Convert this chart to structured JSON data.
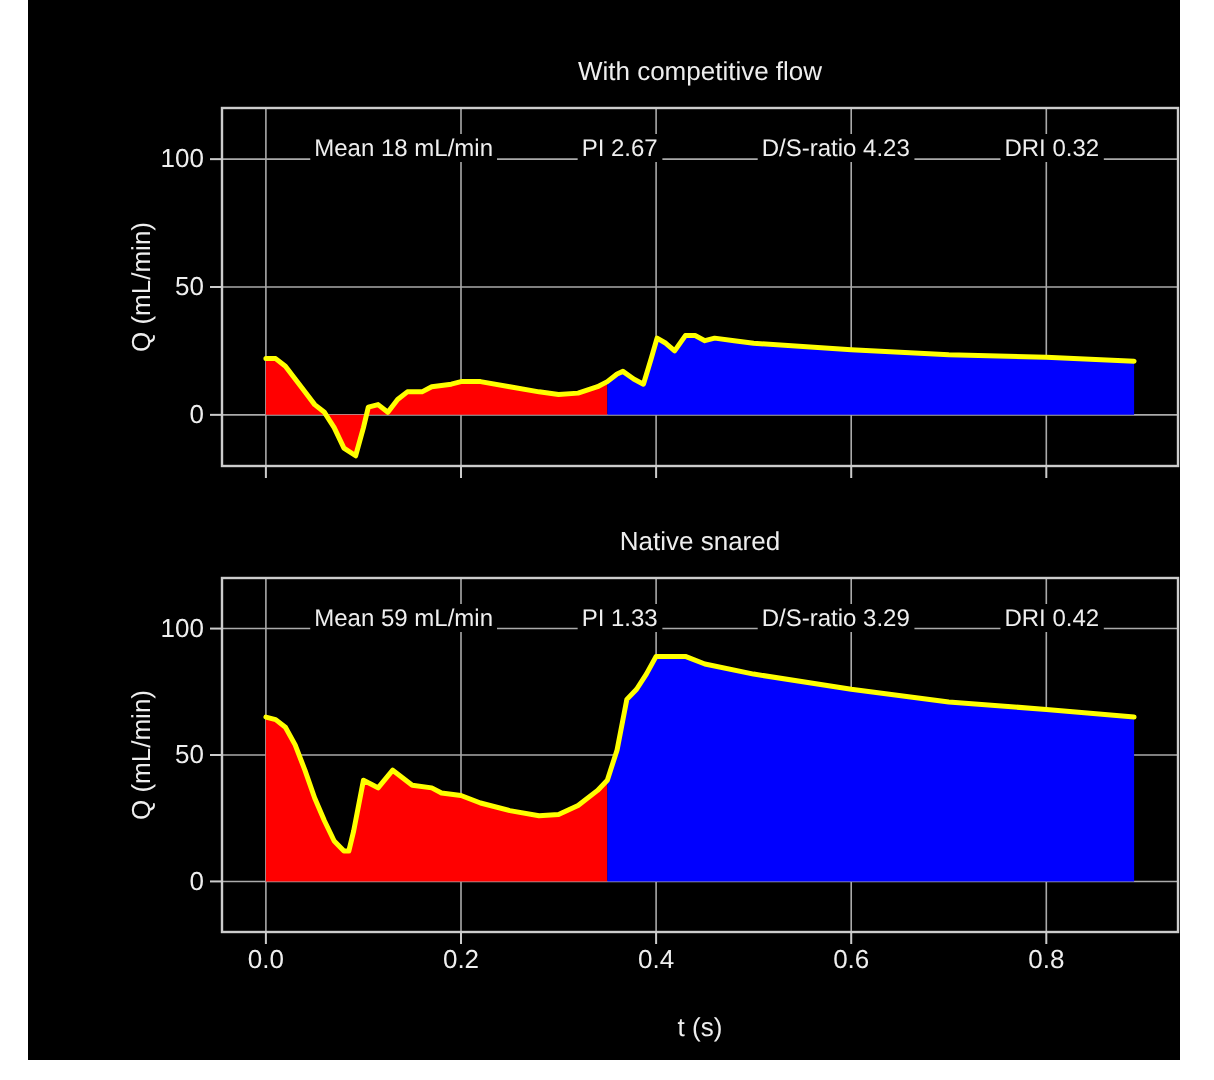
{
  "chart_data": [
    {
      "type": "area",
      "title": "With competitive flow",
      "ylabel": "Q (mL/min)",
      "xlim": [
        -0.045,
        0.935
      ],
      "ylim": [
        -20,
        120
      ],
      "xticks": [
        0,
        0.2,
        0.4,
        0.6,
        0.8
      ],
      "yticks": [
        0,
        50,
        100
      ],
      "grid": true,
      "tick_labels": "y",
      "annotations": [
        "Mean 18 mL/min",
        "PI 2.67",
        "D/S-ratio 4.23",
        "DRI 0.32"
      ],
      "series": [
        {
          "type": "area",
          "color": "#ff0000",
          "x": [
            0,
            0.01,
            0.02,
            0.03,
            0.04,
            0.05,
            0.06,
            0.07,
            0.08,
            0.092,
            0.1,
            0.105,
            0.115,
            0.125,
            0.135,
            0.145,
            0.16,
            0.17,
            0.19,
            0.2,
            0.22,
            0.25,
            0.28,
            0.3,
            0.32,
            0.34,
            0.35
          ],
          "values": [
            22,
            22,
            19,
            14,
            9,
            4,
            1,
            -5,
            -13,
            -16,
            -5,
            3,
            4,
            1,
            6,
            9,
            9,
            11,
            12,
            13,
            13,
            11,
            9,
            8,
            8.5,
            11,
            13
          ]
        },
        {
          "type": "area",
          "color": "#0000ff",
          "x": [
            0.35,
            0.36,
            0.366,
            0.377,
            0.387,
            0.395,
            0.401,
            0.41,
            0.419,
            0.43,
            0.44,
            0.45,
            0.46,
            0.48,
            0.5,
            0.6,
            0.7,
            0.8,
            0.89
          ],
          "values": [
            13,
            16,
            17,
            14,
            12,
            22,
            30,
            28,
            25,
            31,
            31,
            29,
            30,
            29,
            28,
            25.5,
            23.5,
            22.5,
            21
          ]
        },
        {
          "type": "line",
          "color": "#ffff00",
          "x": [
            0,
            0.01,
            0.02,
            0.03,
            0.04,
            0.05,
            0.06,
            0.07,
            0.08,
            0.092,
            0.1,
            0.105,
            0.115,
            0.125,
            0.135,
            0.145,
            0.16,
            0.17,
            0.19,
            0.2,
            0.22,
            0.25,
            0.28,
            0.3,
            0.32,
            0.34,
            0.35,
            0.36,
            0.366,
            0.377,
            0.387,
            0.395,
            0.401,
            0.41,
            0.419,
            0.43,
            0.44,
            0.45,
            0.46,
            0.48,
            0.5,
            0.6,
            0.7,
            0.8,
            0.89
          ],
          "values": [
            22,
            22,
            19,
            14,
            9,
            4,
            1,
            -5,
            -13,
            -16,
            -5,
            3,
            4,
            1,
            6,
            9,
            9,
            11,
            12,
            13,
            13,
            11,
            9,
            8,
            8.5,
            11,
            13,
            16,
            17,
            14,
            12,
            22,
            30,
            28,
            25,
            31,
            31,
            29,
            30,
            29,
            28,
            25.5,
            23.5,
            22.5,
            21
          ]
        }
      ]
    },
    {
      "type": "area",
      "title": "Native snared",
      "xlabel": "t (s)",
      "ylabel": "Q (mL/min)",
      "xlim": [
        -0.045,
        0.935
      ],
      "ylim": [
        -20,
        120
      ],
      "xticks": [
        {
          "value": 0,
          "label": "0.0"
        },
        0.2,
        0.4,
        0.6,
        0.8
      ],
      "yticks": [
        0,
        50,
        100
      ],
      "grid": true,
      "annotations": [
        "Mean 59 mL/min",
        "PI 1.33",
        "D/S-ratio 3.29",
        "DRI 0.42"
      ],
      "series": [
        {
          "type": "area",
          "color": "#ff0000",
          "x": [
            0,
            0.01,
            0.02,
            0.03,
            0.04,
            0.05,
            0.06,
            0.07,
            0.08,
            0.085,
            0.09,
            0.1,
            0.11,
            0.115,
            0.13,
            0.14,
            0.15,
            0.17,
            0.18,
            0.2,
            0.22,
            0.25,
            0.28,
            0.3,
            0.32,
            0.34,
            0.35
          ],
          "values": [
            65,
            64,
            61,
            54,
            44,
            33,
            24,
            16,
            12,
            12,
            20,
            40,
            38,
            37,
            44,
            41,
            38,
            37,
            35,
            34,
            31,
            28,
            26,
            26.5,
            30,
            36,
            40
          ]
        },
        {
          "type": "area",
          "color": "#0000ff",
          "x": [
            0.35,
            0.36,
            0.37,
            0.38,
            0.39,
            0.4,
            0.42,
            0.43,
            0.45,
            0.5,
            0.6,
            0.7,
            0.8,
            0.89
          ],
          "values": [
            40,
            52,
            72,
            76,
            82,
            89,
            89,
            89,
            86,
            82,
            76,
            71,
            68,
            65
          ]
        },
        {
          "type": "line",
          "color": "#ffff00",
          "x": [
            0,
            0.01,
            0.02,
            0.03,
            0.04,
            0.05,
            0.06,
            0.07,
            0.08,
            0.085,
            0.09,
            0.1,
            0.11,
            0.115,
            0.13,
            0.14,
            0.15,
            0.17,
            0.18,
            0.2,
            0.22,
            0.25,
            0.28,
            0.3,
            0.32,
            0.34,
            0.35,
            0.36,
            0.37,
            0.38,
            0.39,
            0.4,
            0.42,
            0.43,
            0.45,
            0.5,
            0.6,
            0.7,
            0.8,
            0.89
          ],
          "values": [
            65,
            64,
            61,
            54,
            44,
            33,
            24,
            16,
            12,
            12,
            20,
            40,
            38,
            37,
            44,
            41,
            38,
            37,
            35,
            34,
            31,
            28,
            26,
            26.5,
            30,
            36,
            40,
            52,
            72,
            76,
            82,
            89,
            89,
            89,
            86,
            82,
            76,
            71,
            68,
            65
          ]
        }
      ]
    }
  ]
}
